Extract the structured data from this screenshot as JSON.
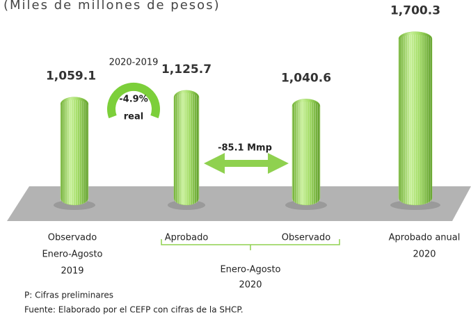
{
  "chart_data": {
    "type": "bar",
    "subtitle": "(Miles de millones de pesos)",
    "categories": [
      [
        "Observado",
        "Enero-Agosto",
        "2019"
      ],
      [
        "Aprobado"
      ],
      [
        "Observado"
      ],
      [
        "Aprobado anual",
        "2020"
      ]
    ],
    "values": [
      1059.1,
      1125.7,
      1040.6,
      1700.3
    ],
    "value_labels": [
      "1,059.1",
      "1,125.7",
      "1,040.6",
      "1,700.3"
    ],
    "color": "#9ad65a",
    "ylim": [
      0,
      1800
    ],
    "group_label": [
      "Enero-Agosto",
      "2020"
    ],
    "annotations": {
      "period": "2020-2019",
      "change": "-4.9%",
      "basis": "real",
      "difference": "-85.1 Mmp"
    },
    "notes": [
      "P: Cifras preliminares",
      "Fuente: Elaborado por el CEFP con cifras de la SHCP."
    ]
  }
}
